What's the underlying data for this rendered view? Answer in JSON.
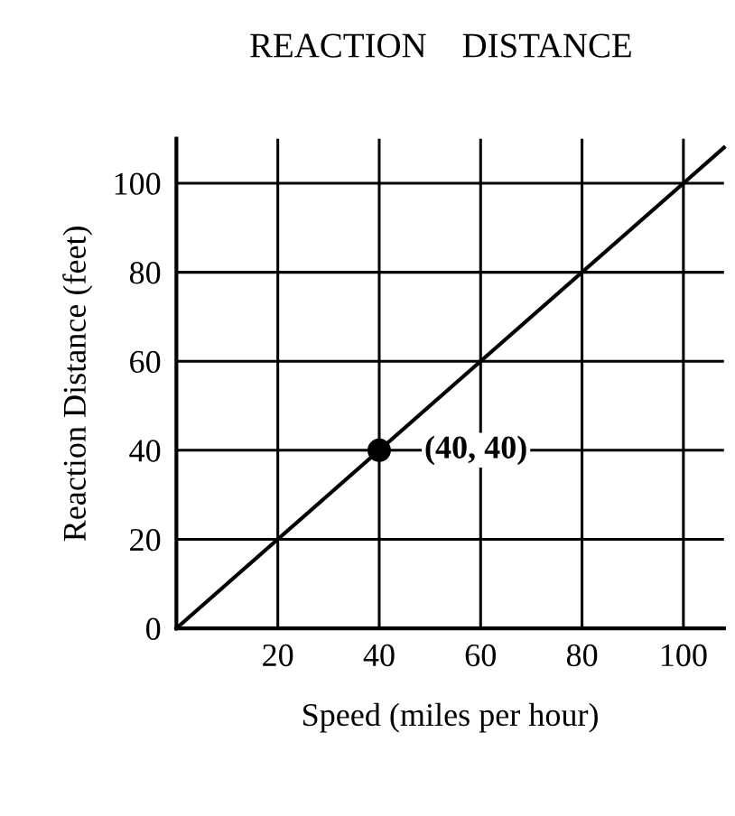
{
  "chart_data": {
    "type": "line",
    "title": "REACTION    DISTANCE",
    "xlabel": "Speed (miles per hour)",
    "ylabel": "Reaction Distance (feet)",
    "series": [
      {
        "color": "#000000",
        "x": [
          0,
          108
        ],
        "values": [
          0,
          108
        ]
      },
      {
        "type": "scatter",
        "color": "#000000",
        "x": [
          40
        ],
        "values": [
          40
        ]
      }
    ],
    "xlim": [
      0,
      108
    ],
    "ylim": [
      0,
      110
    ],
    "xticks": [
      20,
      40,
      60,
      80,
      100
    ],
    "yticks": [
      0,
      20,
      40,
      60,
      80,
      100
    ],
    "grid": true,
    "annotations": [
      {
        "text": "(40, 40)",
        "x": 40,
        "y": 40
      }
    ]
  }
}
